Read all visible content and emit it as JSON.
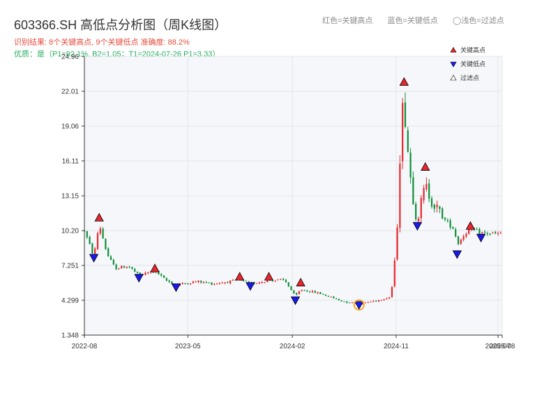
{
  "header": {
    "title": "603366.SH 高低点分析图（周K线图）",
    "summary": "识别结果: 8个关键高点, 9个关键低点  准确度: 88.2%",
    "quality": "优质：是（P1=92.1%, B2=1.05；T1=2024-07-26 P1=3.33）"
  },
  "top_legend": {
    "red": "红色=关键高点",
    "blue": "蓝色=关键低点",
    "gray": "◯浅色=过滤点"
  },
  "colors": {
    "up": "#e8262d",
    "down": "#0e8f3a",
    "high_marker": "#e8262d",
    "low_marker": "#1a1aee",
    "filtered_marker": "#ffffff",
    "highlight_ring": "#f5a623",
    "plot_bg": "#f5f7fa",
    "grid": "#e3e6ea"
  },
  "chart_data": {
    "type": "candlestick",
    "x_axis": {
      "labels": [
        "2022-08",
        "2023-05",
        "2024-02",
        "2024-11",
        "2025-07",
        "2025-08"
      ],
      "range": [
        "2022-08-01",
        "2025-08-08"
      ]
    },
    "y_axis": {
      "ticks": [
        "1.348",
        "4.299",
        "7.251",
        "10.20",
        "13.15",
        "16.11",
        "19.06",
        "22.01",
        "24.96"
      ],
      "range": [
        1.348,
        24.96
      ]
    },
    "grid": true,
    "legend": {
      "placement": "top-right",
      "entries": [
        {
          "label": "关键高点",
          "marker": "high"
        },
        {
          "label": "关键低点",
          "marker": "low"
        },
        {
          "label": "过滤点",
          "marker": "filtered"
        }
      ]
    },
    "key_highs": [
      {
        "date": "2022-09-09",
        "value": 11.3
      },
      {
        "date": "2023-02-03",
        "value": 7.0
      },
      {
        "date": "2023-09-15",
        "value": 6.3
      },
      {
        "date": "2023-12-01",
        "value": 6.3
      },
      {
        "date": "2024-02-23",
        "value": 5.8
      },
      {
        "date": "2024-11-22",
        "value": 22.8
      },
      {
        "date": "2025-01-17",
        "value": 15.6
      },
      {
        "date": "2025-05-16",
        "value": 10.6
      }
    ],
    "key_lows": [
      {
        "date": "2022-08-26",
        "value": 7.9
      },
      {
        "date": "2022-12-23",
        "value": 6.2
      },
      {
        "date": "2023-03-31",
        "value": 5.4
      },
      {
        "date": "2023-10-13",
        "value": 5.5
      },
      {
        "date": "2024-02-09",
        "value": 4.3
      },
      {
        "date": "2024-07-26",
        "value": 3.9
      },
      {
        "date": "2024-12-27",
        "value": 10.6
      },
      {
        "date": "2025-04-11",
        "value": 8.2
      },
      {
        "date": "2025-06-13",
        "value": 9.6
      }
    ],
    "highlighted_low": {
      "date": "2024-07-26",
      "value": 3.9
    },
    "price_path": [
      {
        "date": "2022-08-01",
        "value": 10.2
      },
      {
        "date": "2022-08-26",
        "value": 8.0
      },
      {
        "date": "2022-09-09",
        "value": 10.8
      },
      {
        "date": "2022-09-30",
        "value": 8.2
      },
      {
        "date": "2022-10-21",
        "value": 7.0
      },
      {
        "date": "2022-11-25",
        "value": 7.2
      },
      {
        "date": "2022-12-23",
        "value": 6.4
      },
      {
        "date": "2023-02-03",
        "value": 6.8
      },
      {
        "date": "2023-03-03",
        "value": 6.0
      },
      {
        "date": "2023-03-31",
        "value": 5.6
      },
      {
        "date": "2023-05-26",
        "value": 5.9
      },
      {
        "date": "2023-07-07",
        "value": 5.7
      },
      {
        "date": "2023-09-15",
        "value": 6.0
      },
      {
        "date": "2023-10-13",
        "value": 5.7
      },
      {
        "date": "2023-12-01",
        "value": 6.0
      },
      {
        "date": "2024-01-12",
        "value": 6.0
      },
      {
        "date": "2024-02-09",
        "value": 4.6
      },
      {
        "date": "2024-02-23",
        "value": 5.2
      },
      {
        "date": "2024-04-12",
        "value": 4.9
      },
      {
        "date": "2024-06-14",
        "value": 4.2
      },
      {
        "date": "2024-07-26",
        "value": 4.0
      },
      {
        "date": "2024-09-13",
        "value": 4.3
      },
      {
        "date": "2024-10-18",
        "value": 4.6
      },
      {
        "date": "2024-11-01",
        "value": 8.5
      },
      {
        "date": "2024-11-08",
        "value": 14.0
      },
      {
        "date": "2024-11-15",
        "value": 20.0
      },
      {
        "date": "2024-11-22",
        "value": 21.0
      },
      {
        "date": "2024-12-06",
        "value": 15.5
      },
      {
        "date": "2024-12-20",
        "value": 12.0
      },
      {
        "date": "2024-12-27",
        "value": 11.2
      },
      {
        "date": "2025-01-17",
        "value": 14.0
      },
      {
        "date": "2025-02-07",
        "value": 12.5
      },
      {
        "date": "2025-03-07",
        "value": 11.2
      },
      {
        "date": "2025-04-04",
        "value": 10.3
      },
      {
        "date": "2025-04-11",
        "value": 9.0
      },
      {
        "date": "2025-05-02",
        "value": 10.0
      },
      {
        "date": "2025-05-16",
        "value": 10.3
      },
      {
        "date": "2025-06-13",
        "value": 10.0
      },
      {
        "date": "2025-08-08",
        "value": 9.9
      }
    ]
  }
}
